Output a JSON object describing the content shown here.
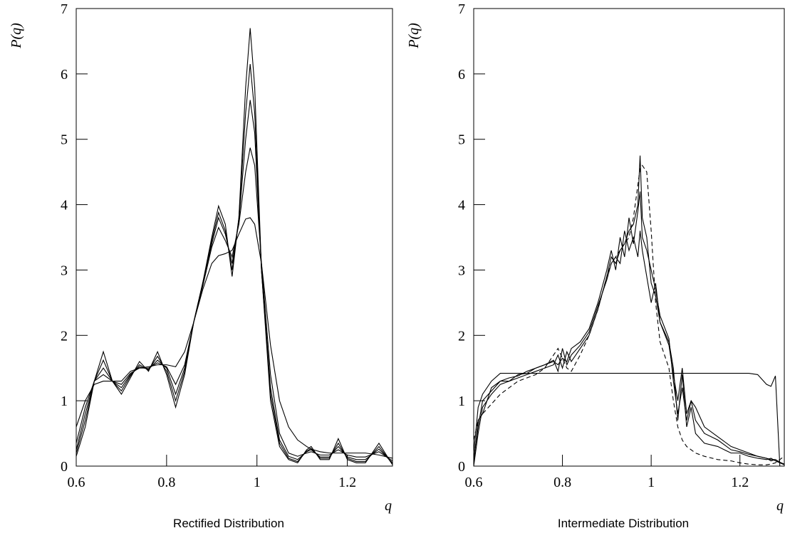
{
  "chart_data": [
    {
      "type": "line",
      "caption": "Rectified Distribution",
      "xlabel": "q",
      "ylabel": "P(q)",
      "xlim": [
        0.6,
        1.3
      ],
      "ylim": [
        0,
        7
      ],
      "xticks": [
        0.6,
        0.8,
        1,
        1.2
      ],
      "yticks": [
        0,
        1,
        2,
        3,
        4,
        5,
        6,
        7
      ],
      "x": [
        0.6,
        0.62,
        0.64,
        0.66,
        0.68,
        0.7,
        0.72,
        0.74,
        0.76,
        0.78,
        0.8,
        0.82,
        0.84,
        0.86,
        0.88,
        0.9,
        0.915,
        0.93,
        0.945,
        0.96,
        0.975,
        0.985,
        0.995,
        1.01,
        1.03,
        1.05,
        1.07,
        1.09,
        1.11,
        1.12,
        1.14,
        1.16,
        1.18,
        1.2,
        1.22,
        1.24,
        1.27,
        1.3
      ],
      "series": [
        {
          "color": "#000000",
          "style": "solid",
          "values": [
            0.15,
            0.6,
            1.3,
            1.75,
            1.3,
            1.1,
            1.35,
            1.6,
            1.45,
            1.75,
            1.4,
            0.9,
            1.4,
            2.2,
            2.8,
            3.5,
            3.98,
            3.7,
            2.9,
            3.8,
            5.8,
            6.7,
            5.8,
            3.0,
            1.0,
            0.3,
            0.1,
            0.05,
            0.25,
            0.3,
            0.1,
            0.1,
            0.42,
            0.1,
            0.05,
            0.05,
            0.35,
            0.02
          ]
        },
        {
          "color": "#000000",
          "style": "solid",
          "values": [
            0.2,
            0.7,
            1.3,
            1.62,
            1.3,
            1.15,
            1.38,
            1.55,
            1.47,
            1.68,
            1.45,
            1.0,
            1.45,
            2.2,
            2.8,
            3.45,
            3.88,
            3.6,
            3.0,
            3.8,
            5.4,
            6.15,
            5.4,
            3.0,
            1.1,
            0.35,
            0.12,
            0.07,
            0.23,
            0.27,
            0.12,
            0.12,
            0.35,
            0.12,
            0.07,
            0.07,
            0.3,
            0.03
          ]
        },
        {
          "color": "#000000",
          "style": "solid",
          "values": [
            0.25,
            0.8,
            1.3,
            1.5,
            1.3,
            1.2,
            1.4,
            1.52,
            1.48,
            1.62,
            1.5,
            1.1,
            1.5,
            2.2,
            2.8,
            3.4,
            3.8,
            3.55,
            3.1,
            3.75,
            5.0,
            5.6,
            5.1,
            3.0,
            1.2,
            0.4,
            0.15,
            0.1,
            0.22,
            0.25,
            0.14,
            0.14,
            0.3,
            0.14,
            0.1,
            0.1,
            0.26,
            0.05
          ]
        },
        {
          "color": "#000000",
          "style": "solid",
          "values": [
            0.35,
            0.9,
            1.3,
            1.4,
            1.3,
            1.25,
            1.42,
            1.5,
            1.5,
            1.58,
            1.52,
            1.25,
            1.55,
            2.2,
            2.75,
            3.35,
            3.65,
            3.45,
            3.2,
            3.7,
            4.5,
            4.87,
            4.6,
            3.1,
            1.4,
            0.5,
            0.2,
            0.15,
            0.2,
            0.22,
            0.17,
            0.17,
            0.25,
            0.17,
            0.14,
            0.14,
            0.22,
            0.08
          ]
        },
        {
          "color": "#000000",
          "style": "solid",
          "values": [
            0.6,
            1.0,
            1.25,
            1.3,
            1.3,
            1.3,
            1.45,
            1.5,
            1.52,
            1.55,
            1.55,
            1.52,
            1.75,
            2.2,
            2.7,
            3.1,
            3.22,
            3.25,
            3.3,
            3.55,
            3.78,
            3.8,
            3.7,
            3.1,
            1.85,
            1.0,
            0.6,
            0.4,
            0.3,
            0.26,
            0.22,
            0.2,
            0.2,
            0.2,
            0.2,
            0.2,
            0.17,
            0.12
          ]
        }
      ]
    },
    {
      "type": "line",
      "caption": "Intermediate Distribution",
      "xlabel": "q",
      "ylabel": "P(q)",
      "xlim": [
        0.6,
        1.3
      ],
      "ylim": [
        0,
        7
      ],
      "xticks": [
        0.6,
        0.8,
        1,
        1.2
      ],
      "yticks": [
        0,
        1,
        2,
        3,
        4,
        5,
        6,
        7
      ],
      "x": [
        0.6,
        0.61,
        0.62,
        0.64,
        0.66,
        0.68,
        0.7,
        0.72,
        0.74,
        0.76,
        0.78,
        0.79,
        0.8,
        0.81,
        0.82,
        0.84,
        0.86,
        0.88,
        0.9,
        0.91,
        0.92,
        0.93,
        0.94,
        0.95,
        0.96,
        0.97,
        0.975,
        0.98,
        0.99,
        1.0,
        1.01,
        1.02,
        1.04,
        1.05,
        1.06,
        1.07,
        1.08,
        1.09,
        1.1,
        1.12,
        1.15,
        1.18,
        1.2,
        1.22,
        1.24,
        1.26,
        1.27,
        1.28,
        1.29,
        1.3
      ],
      "series": [
        {
          "color": "#000000",
          "style": "solid",
          "values": [
            0,
            0.5,
            0.9,
            1.1,
            1.25,
            1.3,
            1.35,
            1.4,
            1.45,
            1.5,
            1.55,
            1.7,
            1.5,
            1.75,
            1.6,
            1.8,
            2.0,
            2.4,
            2.9,
            3.2,
            3.1,
            3.3,
            3.4,
            3.6,
            3.7,
            4.0,
            4.75,
            3.8,
            3.5,
            2.8,
            2.6,
            2.2,
            1.9,
            1.5,
            0.7,
            1.4,
            0.6,
            0.9,
            0.5,
            0.35,
            0.3,
            0.2,
            0.2,
            0.15,
            0.12,
            0.1,
            0.12,
            0.08,
            0.05,
            0.03
          ]
        },
        {
          "color": "#000000",
          "style": "solid",
          "values": [
            0.1,
            0.6,
            1.0,
            1.15,
            1.3,
            1.35,
            1.38,
            1.45,
            1.5,
            1.55,
            1.6,
            1.55,
            1.65,
            1.6,
            1.8,
            1.9,
            2.1,
            2.5,
            3.0,
            3.3,
            3.0,
            3.5,
            3.2,
            3.8,
            3.4,
            3.9,
            4.2,
            3.5,
            3.3,
            3.0,
            2.7,
            2.3,
            1.95,
            1.3,
            0.8,
            1.2,
            0.7,
            1.0,
            0.7,
            0.5,
            0.4,
            0.25,
            0.22,
            0.18,
            0.15,
            0.12,
            0.1,
            0.1,
            0.06,
            0.03
          ]
        },
        {
          "color": "#000000",
          "style": "solid",
          "values": [
            0.05,
            0.7,
            0.8,
            1.2,
            1.3,
            1.3,
            1.4,
            1.42,
            1.5,
            1.55,
            1.62,
            1.45,
            1.8,
            1.55,
            1.7,
            1.85,
            2.05,
            2.45,
            2.85,
            3.1,
            3.2,
            3.1,
            3.6,
            3.3,
            3.5,
            3.2,
            3.6,
            3.3,
            2.9,
            2.5,
            2.8,
            2.2,
            1.85,
            1.4,
            1.0,
            1.5,
            0.8,
            1.0,
            0.9,
            0.6,
            0.45,
            0.3,
            0.25,
            0.2,
            0.15,
            0.12,
            0.08,
            0.1,
            0.05,
            0.02
          ]
        },
        {
          "color": "#000000",
          "style": "dashed",
          "values": [
            0.4,
            0.7,
            0.8,
            0.95,
            1.1,
            1.2,
            1.3,
            1.35,
            1.4,
            1.5,
            1.7,
            1.8,
            1.65,
            1.5,
            1.45,
            1.7,
            2.0,
            2.4,
            2.9,
            3.1,
            3.2,
            3.3,
            3.4,
            3.5,
            3.8,
            4.3,
            4.55,
            4.6,
            4.5,
            3.6,
            2.5,
            1.9,
            1.5,
            1.0,
            0.6,
            0.4,
            0.3,
            0.25,
            0.2,
            0.15,
            0.1,
            0.08,
            0.05,
            0.03,
            0.02,
            0.02,
            0.03,
            0.05,
            0.1,
            0.15
          ]
        },
        {
          "color": "#000000",
          "style": "solid",
          "values": [
            0.2,
            0.9,
            1.1,
            1.3,
            1.42,
            1.42,
            1.42,
            1.42,
            1.42,
            1.42,
            1.42,
            1.42,
            1.42,
            1.42,
            1.42,
            1.42,
            1.42,
            1.42,
            1.42,
            1.42,
            1.42,
            1.42,
            1.42,
            1.42,
            1.42,
            1.42,
            1.42,
            1.42,
            1.42,
            1.42,
            1.42,
            1.42,
            1.42,
            1.42,
            1.42,
            1.42,
            1.42,
            1.42,
            1.42,
            1.42,
            1.42,
            1.42,
            1.42,
            1.42,
            1.4,
            1.25,
            1.22,
            1.38,
            0,
            0
          ]
        }
      ]
    }
  ]
}
